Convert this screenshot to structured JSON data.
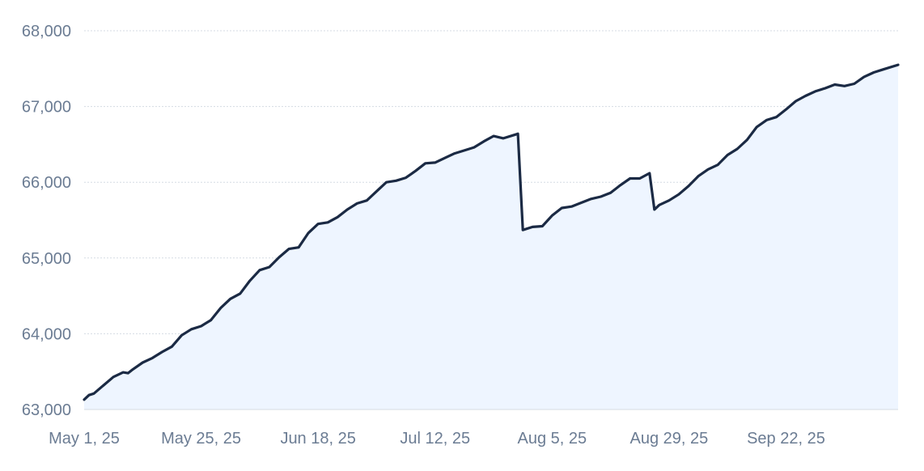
{
  "chart_data": {
    "type": "area",
    "title": "",
    "xlabel": "",
    "ylabel": "",
    "ylim": [
      63000,
      68000
    ],
    "xlim": [
      "2025-05-01",
      "2025-10-15"
    ],
    "grid": true,
    "legend": "none",
    "colors": {
      "line": "#1b2a44",
      "fill": "#eef5ff",
      "grid": "#d5dbe3",
      "text": "#6b7c93"
    },
    "y_ticks": [
      {
        "value": 63000,
        "label": "63,000"
      },
      {
        "value": 64000,
        "label": "64,000"
      },
      {
        "value": 65000,
        "label": "65,000"
      },
      {
        "value": 66000,
        "label": "66,000"
      },
      {
        "value": 67000,
        "label": "67,000"
      },
      {
        "value": 68000,
        "label": "68,000"
      }
    ],
    "x_ticks": [
      {
        "value": "2025-05-01",
        "label": "May 1, 25"
      },
      {
        "value": "2025-05-25",
        "label": "May 25, 25"
      },
      {
        "value": "2025-06-18",
        "label": "Jun 18, 25"
      },
      {
        "value": "2025-07-12",
        "label": "Jul 12, 25"
      },
      {
        "value": "2025-08-05",
        "label": "Aug 5, 25"
      },
      {
        "value": "2025-08-29",
        "label": "Aug 29, 25"
      },
      {
        "value": "2025-09-22",
        "label": "Sep 22, 25"
      }
    ],
    "x": [
      "2025-05-01",
      "2025-05-02",
      "2025-05-03",
      "2025-05-05",
      "2025-05-07",
      "2025-05-09",
      "2025-05-10",
      "2025-05-11",
      "2025-05-13",
      "2025-05-15",
      "2025-05-17",
      "2025-05-19",
      "2025-05-21",
      "2025-05-23",
      "2025-05-25",
      "2025-05-27",
      "2025-05-29",
      "2025-05-31",
      "2025-06-02",
      "2025-06-04",
      "2025-06-06",
      "2025-06-08",
      "2025-06-10",
      "2025-06-12",
      "2025-06-14",
      "2025-06-16",
      "2025-06-18",
      "2025-06-20",
      "2025-06-22",
      "2025-06-24",
      "2025-06-26",
      "2025-06-28",
      "2025-06-30",
      "2025-07-02",
      "2025-07-04",
      "2025-07-06",
      "2025-07-08",
      "2025-07-10",
      "2025-07-12",
      "2025-07-14",
      "2025-07-16",
      "2025-07-18",
      "2025-07-20",
      "2025-07-22",
      "2025-07-24",
      "2025-07-26",
      "2025-07-28",
      "2025-07-29",
      "2025-07-30",
      "2025-08-01",
      "2025-08-03",
      "2025-08-05",
      "2025-08-07",
      "2025-08-09",
      "2025-08-11",
      "2025-08-13",
      "2025-08-15",
      "2025-08-17",
      "2025-08-19",
      "2025-08-21",
      "2025-08-23",
      "2025-08-25",
      "2025-08-26",
      "2025-08-27",
      "2025-08-29",
      "2025-08-31",
      "2025-09-02",
      "2025-09-04",
      "2025-09-06",
      "2025-09-08",
      "2025-09-10",
      "2025-09-12",
      "2025-09-14",
      "2025-09-16",
      "2025-09-18",
      "2025-09-20",
      "2025-09-22",
      "2025-09-24",
      "2025-09-26",
      "2025-09-28",
      "2025-09-30",
      "2025-10-02",
      "2025-10-04",
      "2025-10-06",
      "2025-10-08",
      "2025-10-10",
      "2025-10-12",
      "2025-10-15"
    ],
    "series": [
      {
        "values": [
          63130,
          63190,
          63210,
          63320,
          63430,
          63490,
          63480,
          63530,
          63620,
          63680,
          63760,
          63830,
          63980,
          64060,
          64100,
          64180,
          64340,
          64460,
          64530,
          64700,
          64840,
          64880,
          65010,
          65120,
          65140,
          65330,
          65450,
          65470,
          65540,
          65640,
          65720,
          65760,
          65880,
          66000,
          66020,
          66060,
          66150,
          66250,
          66260,
          66320,
          66380,
          66420,
          66460,
          66540,
          66610,
          66580,
          66620,
          66640,
          65370,
          65410,
          65420,
          65560,
          65660,
          65680,
          65730,
          65780,
          65810,
          65860,
          65960,
          66050,
          66050,
          66120,
          65640,
          65700,
          65760,
          65840,
          65950,
          66080,
          66170,
          66230,
          66360,
          66440,
          66560,
          66730,
          66820,
          66860,
          66960,
          67070,
          67140,
          67200,
          67240,
          67290,
          67270,
          67300,
          67390,
          67450,
          67490,
          67550
        ]
      }
    ]
  }
}
